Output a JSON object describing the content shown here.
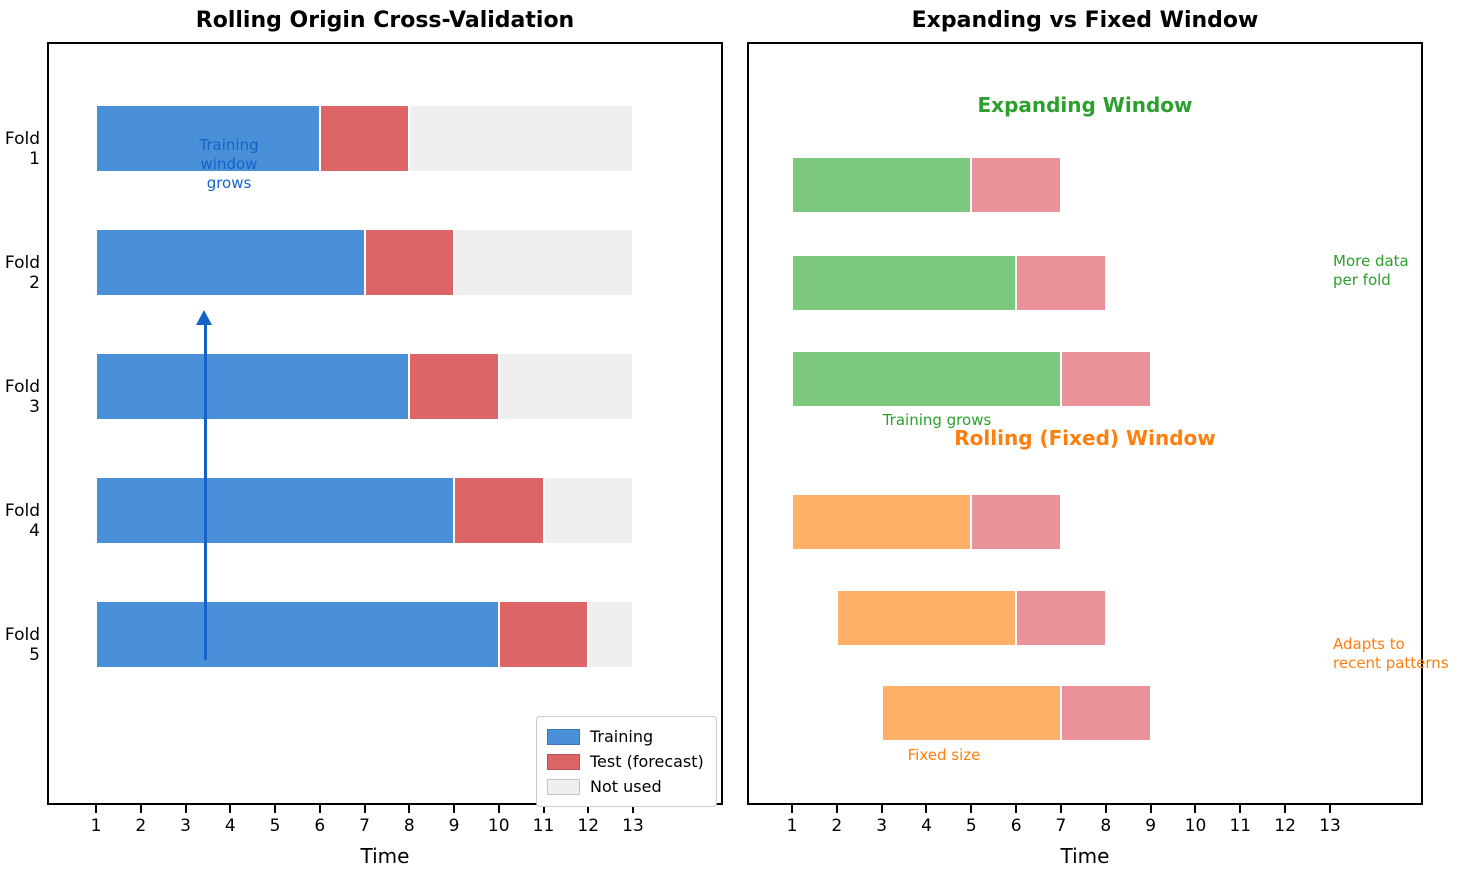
{
  "colors": {
    "training_blue": "#4a90d9",
    "test_red": "#dd6565",
    "not_used_gray": "#efefef",
    "expanding_green": "#7dc87f",
    "test_pink": "#e9929a",
    "rolling_orange": "#feb069",
    "green_text": "#2ca02c",
    "orange_text": "#ff7f0e",
    "annotation_blue": "#1464c8",
    "axis_black": "#000000"
  },
  "chart_data": [
    {
      "type": "bar",
      "orientation": "horizontal",
      "title": "Rolling Origin Cross-Validation",
      "xlabel": "Time",
      "x_ticks": [
        1,
        2,
        3,
        4,
        5,
        6,
        7,
        8,
        9,
        10,
        11,
        12,
        13
      ],
      "xlim": [
        0,
        14.8
      ],
      "grid": false,
      "legend_position": "lower right",
      "legend": [
        {
          "label": "Training",
          "color_key": "training_blue"
        },
        {
          "label": "Test (forecast)",
          "color_key": "test_red"
        },
        {
          "label": "Not used",
          "color_key": "not_used_gray"
        }
      ],
      "folds": [
        {
          "label": "Fold 1",
          "train": [
            1,
            6
          ],
          "test": [
            6,
            8
          ],
          "not_used": [
            8,
            13
          ]
        },
        {
          "label": "Fold 2",
          "train": [
            1,
            7
          ],
          "test": [
            7,
            9
          ],
          "not_used": [
            9,
            13
          ]
        },
        {
          "label": "Fold 3",
          "train": [
            1,
            8
          ],
          "test": [
            8,
            10
          ],
          "not_used": [
            10,
            13
          ]
        },
        {
          "label": "Fold 4",
          "train": [
            1,
            9
          ],
          "test": [
            9,
            11
          ],
          "not_used": [
            11,
            13
          ]
        },
        {
          "label": "Fold 5",
          "train": [
            1,
            10
          ],
          "test": [
            10,
            12
          ],
          "not_used": [
            12,
            13
          ]
        }
      ],
      "annotation": {
        "text": "Training\nwindow\ngrows",
        "text_x": 4,
        "arrow_x": 3.45,
        "arrow_from_fold": "Fold 5",
        "arrow_to_fold": "Fold 2"
      }
    },
    {
      "type": "bar",
      "orientation": "horizontal",
      "title": "Expanding vs Fixed Window",
      "xlabel": "Time",
      "x_ticks": [
        1,
        2,
        3,
        4,
        5,
        6,
        7,
        8,
        9,
        10,
        11,
        12,
        13
      ],
      "xlim": [
        0,
        14.8
      ],
      "grid": false,
      "sections": [
        {
          "heading": "Expanding Window",
          "color_key": "expanding_green",
          "text_color_key": "green_text",
          "bars": [
            {
              "train": [
                1,
                5
              ],
              "test": [
                5,
                7
              ]
            },
            {
              "train": [
                1,
                6
              ],
              "test": [
                6,
                8
              ]
            },
            {
              "train": [
                1,
                7
              ],
              "test": [
                7,
                9
              ]
            }
          ],
          "note": "Training grows",
          "side_note": "More data\nper fold"
        },
        {
          "heading": "Rolling (Fixed) Window",
          "color_key": "rolling_orange",
          "text_color_key": "orange_text",
          "bars": [
            {
              "train": [
                1,
                5
              ],
              "test": [
                5,
                7
              ]
            },
            {
              "train": [
                2,
                6
              ],
              "test": [
                6,
                8
              ]
            },
            {
              "train": [
                3,
                7
              ],
              "test": [
                7,
                9
              ]
            }
          ],
          "note": "Fixed size",
          "side_note": "Adapts to\nrecent patterns"
        }
      ]
    }
  ]
}
